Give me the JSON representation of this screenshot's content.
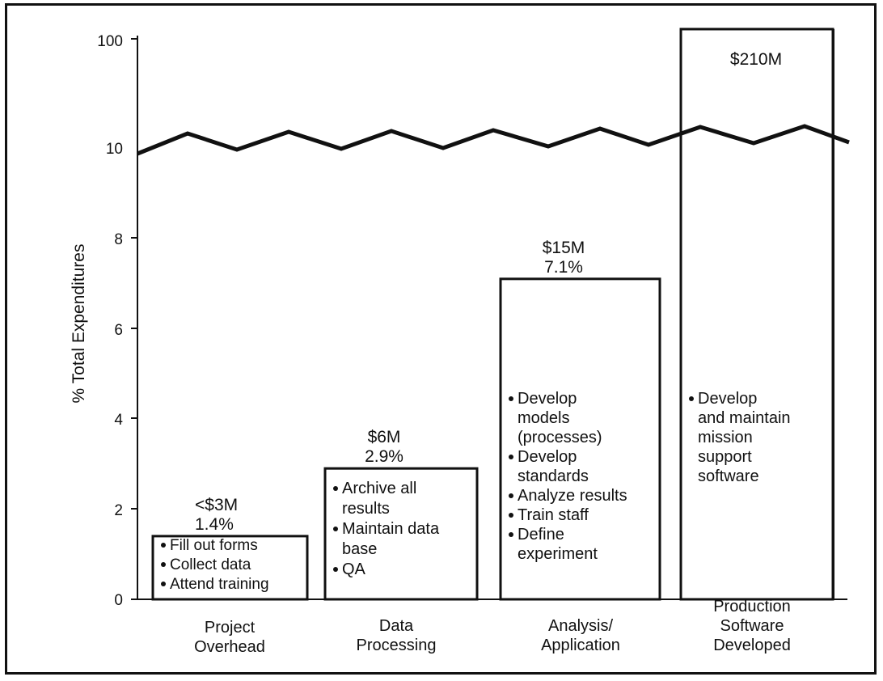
{
  "chart_data": {
    "type": "bar",
    "ylabel": "% Total Expenditures",
    "y_ticks": [
      "0",
      "2",
      "4",
      "6",
      "8",
      "10",
      "100"
    ],
    "axis_break": "wavy line between 10 and 100",
    "grid": false,
    "categories": [
      [
        "Project",
        "Overhead"
      ],
      [
        "Data",
        "Processing"
      ],
      [
        "Analysis/",
        "Application"
      ],
      [
        "Production",
        "Software",
        "Developed"
      ]
    ],
    "values": [
      1.4,
      2.9,
      7.1,
      100
    ],
    "bars": [
      {
        "value": 1.4,
        "labels": [
          "<$3M",
          "1.4%"
        ],
        "bullets": [
          [
            "Fill out forms"
          ],
          [
            "Collect data"
          ],
          [
            "Attend training"
          ]
        ]
      },
      {
        "value": 2.9,
        "labels": [
          "$6M",
          "2.9%"
        ],
        "bullets": [
          [
            "Archive all",
            "results"
          ],
          [
            "Maintain data",
            "base"
          ],
          [
            "QA"
          ]
        ]
      },
      {
        "value": 7.1,
        "labels": [
          "$15M",
          "7.1%"
        ],
        "bullets": [
          [
            "Develop",
            "models",
            "(processes)"
          ],
          [
            "Develop",
            "standards"
          ],
          [
            "Analyze results"
          ],
          [
            "Train staff"
          ],
          [
            "Define",
            "experiment"
          ]
        ]
      },
      {
        "value": 100,
        "labels": [
          "$210M"
        ],
        "bullets": [
          [
            "Develop",
            "and maintain",
            "mission",
            "support",
            "software"
          ]
        ]
      }
    ]
  }
}
